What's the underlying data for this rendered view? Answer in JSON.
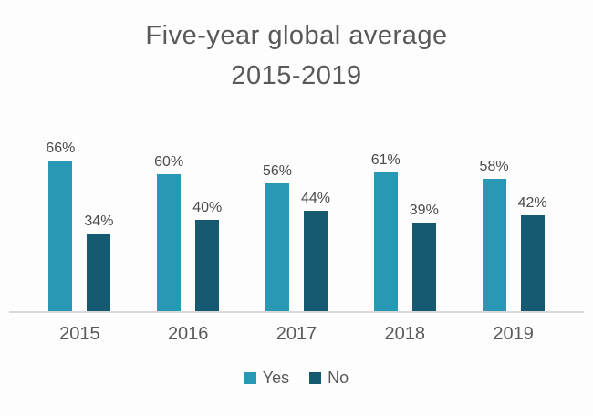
{
  "title": {
    "line1": "Five-year global average",
    "line2": "2015-2019"
  },
  "chart_data": {
    "type": "bar",
    "title": "Five-year global average 2015-2019",
    "categories": [
      "2015",
      "2016",
      "2017",
      "2018",
      "2019"
    ],
    "series": [
      {
        "name": "Yes",
        "values": [
          66,
          60,
          56,
          61,
          58
        ],
        "color": "#2898b5"
      },
      {
        "name": "No",
        "values": [
          34,
          40,
          44,
          39,
          42
        ],
        "color": "#155a70"
      }
    ],
    "value_suffix": "%",
    "ylim": [
      0,
      100
    ],
    "grid": false,
    "legend_position": "bottom",
    "xlabel": "",
    "ylabel": ""
  },
  "colors": {
    "yes_bar": "#2898b5",
    "no_bar": "#155a70",
    "title_text": "#595959",
    "axis_line": "#d9d9d9"
  }
}
